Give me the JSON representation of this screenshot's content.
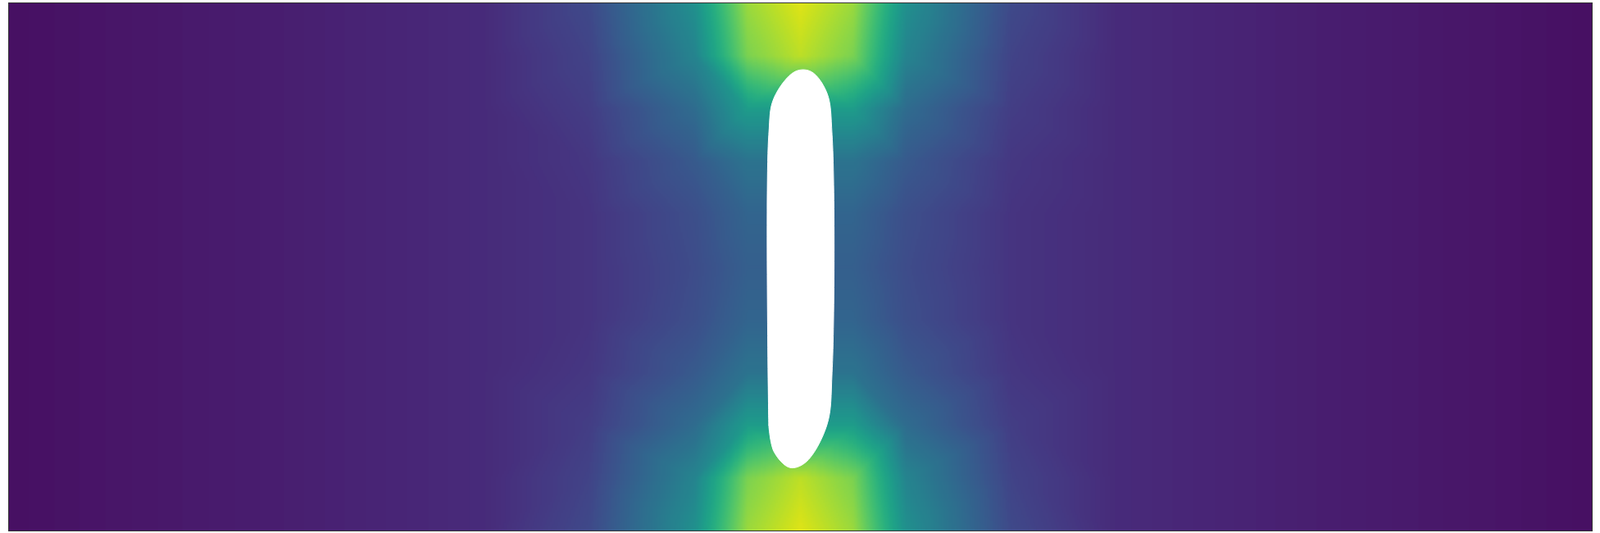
{
  "chart_data": {
    "type": "heatmap",
    "color": "viridis",
    "tick_labels": false,
    "xlim": [
      0,
      3
    ],
    "ylim": [
      0,
      1
    ],
    "clim": [
      0,
      1
    ],
    "x": [
      0,
      0.5,
      0.9,
      1.1,
      1.3,
      1.4,
      1.5,
      1.6,
      1.7,
      1.9,
      2.1,
      2.5,
      3
    ],
    "y": [
      0,
      0.1,
      0.2,
      0.3,
      0.4,
      0.5,
      0.6,
      0.7,
      0.8,
      0.9,
      1
    ],
    "cells": [
      [
        0.04,
        0.08,
        0.12,
        0.22,
        0.5,
        0.85,
        0.95,
        0.85,
        0.5,
        0.22,
        0.12,
        0.08,
        0.04
      ],
      [
        0.04,
        0.08,
        0.12,
        0.2,
        0.45,
        0.8,
        0.9,
        0.8,
        0.45,
        0.2,
        0.12,
        0.08,
        0.04
      ],
      [
        0.04,
        0.08,
        0.12,
        0.18,
        0.35,
        0.55,
        null,
        0.55,
        0.35,
        0.18,
        0.12,
        0.08,
        0.04
      ],
      [
        0.04,
        0.08,
        0.12,
        0.16,
        0.28,
        0.38,
        null,
        0.38,
        0.28,
        0.16,
        0.12,
        0.08,
        0.04
      ],
      [
        0.04,
        0.08,
        0.12,
        0.15,
        0.24,
        0.32,
        null,
        0.32,
        0.24,
        0.15,
        0.12,
        0.08,
        0.04
      ],
      [
        0.04,
        0.08,
        0.12,
        0.15,
        0.23,
        0.3,
        null,
        0.3,
        0.23,
        0.15,
        0.12,
        0.08,
        0.04
      ],
      [
        0.04,
        0.08,
        0.12,
        0.15,
        0.24,
        0.32,
        null,
        0.32,
        0.24,
        0.15,
        0.12,
        0.08,
        0.04
      ],
      [
        0.04,
        0.08,
        0.12,
        0.16,
        0.28,
        0.38,
        null,
        0.38,
        0.28,
        0.16,
        0.12,
        0.08,
        0.04
      ],
      [
        0.04,
        0.08,
        0.12,
        0.18,
        0.35,
        0.55,
        null,
        0.55,
        0.35,
        0.18,
        0.12,
        0.08,
        0.04
      ],
      [
        0.04,
        0.08,
        0.12,
        0.2,
        0.45,
        0.8,
        0.9,
        0.8,
        0.45,
        0.2,
        0.12,
        0.08,
        0.04
      ],
      [
        0.04,
        0.08,
        0.12,
        0.22,
        0.5,
        0.85,
        0.95,
        0.85,
        0.5,
        0.22,
        0.12,
        0.08,
        0.04
      ]
    ],
    "obstacle": [
      [
        1.44,
        0.2
      ],
      [
        1.45,
        0.15
      ],
      [
        1.48,
        0.12
      ],
      [
        1.51,
        0.13
      ],
      [
        1.55,
        0.2
      ],
      [
        1.56,
        0.3
      ],
      [
        1.56,
        0.75
      ],
      [
        1.55,
        0.83
      ],
      [
        1.52,
        0.87
      ],
      [
        1.49,
        0.87
      ],
      [
        1.45,
        0.82
      ],
      [
        1.44,
        0.75
      ]
    ]
  }
}
